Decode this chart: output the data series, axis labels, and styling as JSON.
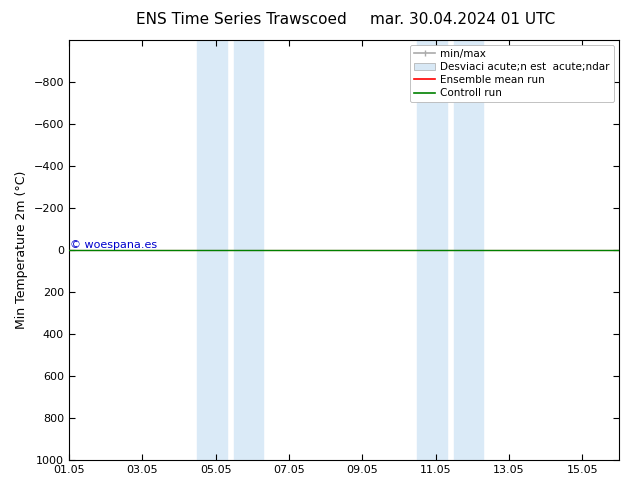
{
  "title_left": "ENS Time Series Trawscoed",
  "title_right": "mar. 30.04.2024 01 UTC",
  "ylabel": "Min Temperature 2m (°C)",
  "ylim_bottom": 1000,
  "ylim_top": -1000,
  "yticks": [
    -800,
    -600,
    -400,
    -200,
    0,
    200,
    400,
    600,
    800,
    1000
  ],
  "xtick_labels": [
    "01.05",
    "03.05",
    "05.05",
    "07.05",
    "09.05",
    "11.05",
    "13.05",
    "15.05"
  ],
  "xtick_positions": [
    0,
    2,
    4,
    6,
    8,
    10,
    12,
    14
  ],
  "xlim": [
    0,
    15
  ],
  "shaded_regions": [
    {
      "start": 3.5,
      "end": 4.3
    },
    {
      "start": 4.5,
      "end": 5.3
    },
    {
      "start": 9.5,
      "end": 10.3
    },
    {
      "start": 10.5,
      "end": 11.3
    }
  ],
  "shade_color": "#daeaf7",
  "control_run_y": 0,
  "control_run_color": "#008000",
  "ensemble_mean_color": "#ff0000",
  "watermark_text": "© woespana.es",
  "watermark_color": "#0000cc",
  "legend_labels": [
    "min/max",
    "Desviaci acute;n est  acute;ndar",
    "Ensemble mean run",
    "Controll run"
  ],
  "legend_colors_line": [
    "#aaaaaa",
    "#cccccc",
    "#ff0000",
    "#008000"
  ],
  "background_color": "#ffffff",
  "plot_bg_color": "#ffffff",
  "title_fontsize": 11,
  "ylabel_fontsize": 9,
  "tick_fontsize": 8,
  "legend_fontsize": 7.5
}
